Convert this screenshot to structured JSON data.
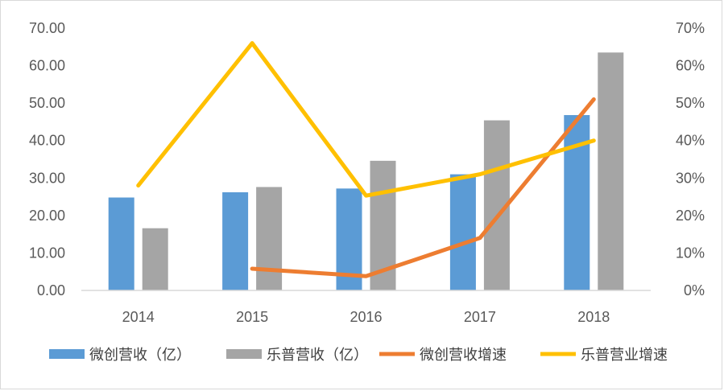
{
  "chart_data": {
    "type": "bar",
    "categories": [
      "2014",
      "2015",
      "2016",
      "2017",
      "2018"
    ],
    "series": [
      {
        "name": "微创营收（亿）",
        "kind": "bar",
        "axis": "left",
        "color": "#5b9bd5",
        "values": [
          24.8,
          26.2,
          27.2,
          31.0,
          46.8
        ]
      },
      {
        "name": "乐普营收（亿）",
        "kind": "bar",
        "axis": "left",
        "color": "#a5a5a5",
        "values": [
          16.6,
          27.6,
          34.6,
          45.4,
          63.5
        ]
      },
      {
        "name": "微创营收增速",
        "kind": "line",
        "axis": "right",
        "color": "#ed7d31",
        "values": [
          null,
          0.058,
          0.038,
          0.14,
          0.51
        ]
      },
      {
        "name": "乐普营业增速",
        "kind": "line",
        "axis": "right",
        "color": "#ffc000",
        "values": [
          0.28,
          0.66,
          0.253,
          0.31,
          0.4
        ]
      }
    ],
    "left_axis": {
      "ylim": [
        0,
        70
      ],
      "ticks": [
        "0.00",
        "10.00",
        "20.00",
        "30.00",
        "40.00",
        "50.00",
        "60.00",
        "70.00"
      ]
    },
    "right_axis": {
      "ylim": [
        0,
        0.7
      ],
      "ticks": [
        "0%",
        "10%",
        "20%",
        "30%",
        "40%",
        "50%",
        "60%",
        "70%"
      ]
    },
    "grid": false,
    "legend_position": "bottom"
  }
}
